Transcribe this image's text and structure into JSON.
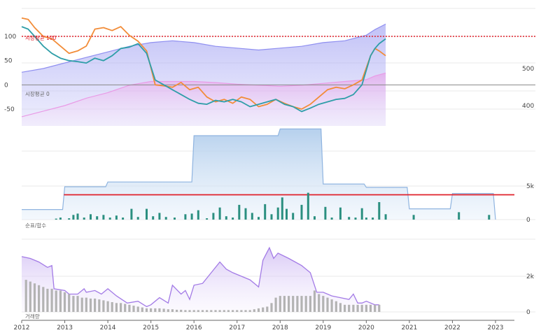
{
  "chart_data": [
    {
      "type": "line",
      "panel": "top",
      "left_axis_ticks": [
        "100",
        "50",
        "0",
        "-50"
      ],
      "left_axis_values": [
        100,
        50,
        0,
        -50
      ],
      "right_axis_ticks": [
        "500",
        "400"
      ],
      "right_axis_values": [
        500,
        400
      ],
      "reference_lines": [
        {
          "label": "시장평균 100",
          "value": 100,
          "color": "#e0202a"
        },
        {
          "label": "시장평균 0",
          "value": 0,
          "color": "#888888"
        }
      ],
      "series": [
        {
          "color": "#f28c38",
          "x": [
            2012.0,
            2012.15,
            2012.3,
            2012.5,
            2012.7,
            2012.9,
            2013.1,
            2013.3,
            2013.5,
            2013.7,
            2013.9,
            2014.1,
            2014.3,
            2014.5,
            2014.7,
            2014.9,
            2015.1,
            2015.3,
            2015.5,
            2015.7,
            2015.9,
            2016.1,
            2016.3,
            2016.5,
            2016.7,
            2016.9,
            2017.1,
            2017.3,
            2017.5,
            2017.7,
            2017.9,
            2018.1,
            2018.3,
            2018.5,
            2018.7,
            2018.9,
            2019.1,
            2019.3,
            2019.5,
            2019.7,
            2019.9,
            2020.1,
            2020.2,
            2020.3,
            2020.45
          ],
          "y": [
            138,
            135,
            118,
            100,
            95,
            80,
            65,
            70,
            80,
            115,
            118,
            112,
            120,
            102,
            90,
            70,
            0,
            -2,
            -5,
            5,
            -10,
            -5,
            -25,
            -35,
            -30,
            -38,
            -25,
            -30,
            -45,
            -40,
            -30,
            -38,
            -45,
            -50,
            -40,
            -25,
            -10,
            -5,
            -8,
            0,
            10,
            60,
            75,
            70,
            60
          ]
        },
        {
          "color": "#2e9ea8",
          "x": [
            2012.0,
            2012.15,
            2012.3,
            2012.5,
            2012.7,
            2012.9,
            2013.1,
            2013.3,
            2013.5,
            2013.7,
            2013.9,
            2014.1,
            2014.3,
            2014.5,
            2014.7,
            2014.9,
            2015.1,
            2015.3,
            2015.5,
            2015.7,
            2015.9,
            2016.1,
            2016.3,
            2016.5,
            2016.7,
            2016.9,
            2017.1,
            2017.3,
            2017.5,
            2017.7,
            2017.9,
            2018.1,
            2018.3,
            2018.5,
            2018.7,
            2018.9,
            2019.1,
            2019.3,
            2019.5,
            2019.7,
            2019.9,
            2020.1,
            2020.2,
            2020.3,
            2020.45
          ],
          "y": [
            120,
            115,
            100,
            80,
            65,
            55,
            50,
            48,
            45,
            55,
            50,
            60,
            75,
            78,
            85,
            65,
            10,
            0,
            -10,
            -20,
            -30,
            -38,
            -40,
            -32,
            -35,
            -30,
            -35,
            -45,
            -40,
            -35,
            -30,
            -40,
            -45,
            -55,
            -48,
            -40,
            -35,
            -30,
            -28,
            -20,
            0,
            60,
            75,
            85,
            95
          ]
        }
      ],
      "bands": [
        {
          "color": "#8f8ff0",
          "x": [
            2012.0,
            2012.5,
            2013.0,
            2013.5,
            2014.0,
            2014.5,
            2015.0,
            2015.5,
            2016.0,
            2016.5,
            2017.0,
            2017.5,
            2018.0,
            2018.5,
            2019.0,
            2019.5,
            2020.0,
            2020.2,
            2020.45
          ],
          "y": [
            490,
            500,
            515,
            530,
            545,
            560,
            570,
            575,
            570,
            560,
            555,
            550,
            555,
            560,
            570,
            575,
            590,
            605,
            620
          ]
        },
        {
          "color": "#e99ae6",
          "x": [
            2012.0,
            2012.5,
            2013.0,
            2013.5,
            2014.0,
            2014.5,
            2015.0,
            2015.5,
            2016.0,
            2016.5,
            2017.0,
            2017.5,
            2018.0,
            2018.5,
            2019.0,
            2019.5,
            2020.0,
            2020.2,
            2020.45
          ],
          "y": [
            370,
            385,
            400,
            420,
            435,
            455,
            465,
            465,
            465,
            462,
            458,
            455,
            452,
            455,
            460,
            465,
            470,
            480,
            488
          ]
        }
      ]
    },
    {
      "type": "bar",
      "panel": "middle",
      "axis_label": "순표/합수",
      "right_axis_ticks": [
        "5k",
        "0"
      ],
      "right_axis_values": [
        5000,
        0
      ],
      "step_band": {
        "color": "#a9c8ea",
        "x": [
          2012.0,
          2012.95,
          2013.0,
          2013.95,
          2014.0,
          2015.95,
          2016.0,
          2017.95,
          2018.0,
          2018.95,
          2019.0,
          2019.95,
          2020.0,
          2020.95,
          2021.0,
          2021.95,
          2022.0,
          2022.95,
          2023.0
        ],
        "y": [
          1500,
          1500,
          4900,
          4900,
          5600,
          5600,
          12500,
          12500,
          13500,
          13500,
          5300,
          5300,
          4800,
          4800,
          1600,
          1600,
          3900,
          3900,
          0
        ]
      },
      "reference_line": {
        "value": 3700,
        "color": "#e0202a"
      },
      "bars": [
        {
          "x": 2012.8,
          "y": 150
        },
        {
          "x": 2012.9,
          "y": 300
        },
        {
          "x": 2013.1,
          "y": 200
        },
        {
          "x": 2013.2,
          "y": 700
        },
        {
          "x": 2013.3,
          "y": 900
        },
        {
          "x": 2013.45,
          "y": 300
        },
        {
          "x": 2013.6,
          "y": 800
        },
        {
          "x": 2013.75,
          "y": 500
        },
        {
          "x": 2013.9,
          "y": 700
        },
        {
          "x": 2014.05,
          "y": 300
        },
        {
          "x": 2014.2,
          "y": 600
        },
        {
          "x": 2014.35,
          "y": 300
        },
        {
          "x": 2014.55,
          "y": 1600
        },
        {
          "x": 2014.7,
          "y": 400
        },
        {
          "x": 2014.9,
          "y": 1600
        },
        {
          "x": 2015.05,
          "y": 500
        },
        {
          "x": 2015.2,
          "y": 1000
        },
        {
          "x": 2015.35,
          "y": 400
        },
        {
          "x": 2015.55,
          "y": 300
        },
        {
          "x": 2015.8,
          "y": 800
        },
        {
          "x": 2015.95,
          "y": 900
        },
        {
          "x": 2016.1,
          "y": 1400
        },
        {
          "x": 2016.3,
          "y": 200
        },
        {
          "x": 2016.45,
          "y": 1000
        },
        {
          "x": 2016.6,
          "y": 1800
        },
        {
          "x": 2016.75,
          "y": 500
        },
        {
          "x": 2016.9,
          "y": 300
        },
        {
          "x": 2017.05,
          "y": 2200
        },
        {
          "x": 2017.2,
          "y": 1700
        },
        {
          "x": 2017.35,
          "y": 1000
        },
        {
          "x": 2017.5,
          "y": 400
        },
        {
          "x": 2017.65,
          "y": 2300
        },
        {
          "x": 2017.8,
          "y": 800
        },
        {
          "x": 2017.95,
          "y": 1800
        },
        {
          "x": 2018.05,
          "y": 3300
        },
        {
          "x": 2018.15,
          "y": 1600
        },
        {
          "x": 2018.3,
          "y": 1000
        },
        {
          "x": 2018.5,
          "y": 2200
        },
        {
          "x": 2018.65,
          "y": 4000
        },
        {
          "x": 2018.8,
          "y": 500
        },
        {
          "x": 2019.05,
          "y": 1900
        },
        {
          "x": 2019.2,
          "y": 300
        },
        {
          "x": 2019.4,
          "y": 1800
        },
        {
          "x": 2019.6,
          "y": 400
        },
        {
          "x": 2019.75,
          "y": 300
        },
        {
          "x": 2019.9,
          "y": 1700
        },
        {
          "x": 2020.0,
          "y": 300
        },
        {
          "x": 2020.15,
          "y": 300
        },
        {
          "x": 2020.3,
          "y": 2600
        },
        {
          "x": 2020.45,
          "y": 800
        },
        {
          "x": 2021.1,
          "y": 700
        },
        {
          "x": 2022.15,
          "y": 1100
        },
        {
          "x": 2022.85,
          "y": 700
        }
      ]
    },
    {
      "type": "bar",
      "panel": "bottom",
      "axis_label": "거래량",
      "right_axis_ticks": [
        "2k",
        "0"
      ],
      "right_axis_values": [
        2000,
        0
      ],
      "x_ticks": [
        "2012",
        "2013",
        "2014",
        "2015",
        "2016",
        "2017",
        "2018",
        "2019",
        "2020",
        "2021",
        "2022",
        "2023"
      ],
      "x_tick_values": [
        2012,
        2013,
        2014,
        2015,
        2016,
        2017,
        2018,
        2019,
        2020,
        2021,
        2022,
        2023
      ],
      "area": {
        "color": "#a37be6",
        "x": [
          2012.0,
          2012.2,
          2012.4,
          2012.6,
          2012.7,
          2012.75,
          2013.0,
          2013.1,
          2013.3,
          2013.45,
          2013.5,
          2013.7,
          2013.85,
          2014.0,
          2014.2,
          2014.45,
          2014.7,
          2014.9,
          2015.0,
          2015.2,
          2015.4,
          2015.5,
          2015.7,
          2015.8,
          2015.9,
          2016.0,
          2016.2,
          2016.4,
          2016.6,
          2016.75,
          2016.9,
          2017.1,
          2017.3,
          2017.5,
          2017.6,
          2017.75,
          2017.85,
          2017.95,
          2018.2,
          2018.5,
          2018.7,
          2018.85,
          2019.0,
          2019.2,
          2019.4,
          2019.6,
          2019.7,
          2019.8,
          2019.9,
          2020.0,
          2020.2,
          2020.3
        ],
        "y": [
          3100,
          3000,
          2800,
          2500,
          2600,
          1300,
          1200,
          1000,
          1000,
          1300,
          1100,
          1200,
          1000,
          1300,
          900,
          500,
          600,
          300,
          400,
          800,
          500,
          1500,
          1000,
          1200,
          700,
          1500,
          1600,
          2200,
          2800,
          2400,
          2200,
          2000,
          1800,
          1400,
          2900,
          3600,
          3000,
          3300,
          3000,
          2600,
          2200,
          1100,
          1100,
          900,
          800,
          700,
          1000,
          500,
          500,
          600,
          400,
          400
        ]
      },
      "bars": [
        {
          "x": 2012.1,
          "y": 1800
        },
        {
          "x": 2012.2,
          "y": 1700
        },
        {
          "x": 2012.3,
          "y": 1600
        },
        {
          "x": 2012.4,
          "y": 1500
        },
        {
          "x": 2012.5,
          "y": 1400
        },
        {
          "x": 2012.6,
          "y": 1300
        },
        {
          "x": 2012.7,
          "y": 1300
        },
        {
          "x": 2012.8,
          "y": 1200
        },
        {
          "x": 2012.9,
          "y": 1200
        },
        {
          "x": 2013.0,
          "y": 1100
        },
        {
          "x": 2013.1,
          "y": 1000
        },
        {
          "x": 2013.2,
          "y": 900
        },
        {
          "x": 2013.3,
          "y": 900
        },
        {
          "x": 2013.4,
          "y": 800
        },
        {
          "x": 2013.5,
          "y": 800
        },
        {
          "x": 2013.6,
          "y": 750
        },
        {
          "x": 2013.7,
          "y": 750
        },
        {
          "x": 2013.8,
          "y": 700
        },
        {
          "x": 2013.9,
          "y": 650
        },
        {
          "x": 2014.0,
          "y": 600
        },
        {
          "x": 2014.1,
          "y": 550
        },
        {
          "x": 2014.2,
          "y": 500
        },
        {
          "x": 2014.3,
          "y": 500
        },
        {
          "x": 2014.4,
          "y": 450
        },
        {
          "x": 2014.5,
          "y": 400
        },
        {
          "x": 2014.6,
          "y": 350
        },
        {
          "x": 2014.7,
          "y": 300
        },
        {
          "x": 2014.8,
          "y": 250
        },
        {
          "x": 2014.9,
          "y": 200
        },
        {
          "x": 2015.0,
          "y": 200
        },
        {
          "x": 2015.1,
          "y": 200
        },
        {
          "x": 2015.2,
          "y": 200
        },
        {
          "x": 2015.3,
          "y": 180
        },
        {
          "x": 2015.4,
          "y": 150
        },
        {
          "x": 2015.5,
          "y": 150
        },
        {
          "x": 2015.6,
          "y": 120
        },
        {
          "x": 2015.7,
          "y": 120
        },
        {
          "x": 2015.8,
          "y": 100
        },
        {
          "x": 2015.9,
          "y": 100
        },
        {
          "x": 2016.0,
          "y": 100
        },
        {
          "x": 2016.1,
          "y": 100
        },
        {
          "x": 2016.2,
          "y": 100
        },
        {
          "x": 2016.3,
          "y": 100
        },
        {
          "x": 2016.4,
          "y": 100
        },
        {
          "x": 2016.5,
          "y": 100
        },
        {
          "x": 2016.6,
          "y": 100
        },
        {
          "x": 2016.7,
          "y": 100
        },
        {
          "x": 2016.8,
          "y": 100
        },
        {
          "x": 2016.9,
          "y": 100
        },
        {
          "x": 2017.0,
          "y": 100
        },
        {
          "x": 2017.1,
          "y": 100
        },
        {
          "x": 2017.2,
          "y": 100
        },
        {
          "x": 2017.3,
          "y": 100
        },
        {
          "x": 2017.4,
          "y": 150
        },
        {
          "x": 2017.5,
          "y": 200
        },
        {
          "x": 2017.6,
          "y": 250
        },
        {
          "x": 2017.7,
          "y": 300
        },
        {
          "x": 2017.8,
          "y": 500
        },
        {
          "x": 2017.9,
          "y": 800
        },
        {
          "x": 2018.0,
          "y": 900
        },
        {
          "x": 2018.1,
          "y": 900
        },
        {
          "x": 2018.2,
          "y": 900
        },
        {
          "x": 2018.3,
          "y": 900
        },
        {
          "x": 2018.4,
          "y": 900
        },
        {
          "x": 2018.5,
          "y": 900
        },
        {
          "x": 2018.6,
          "y": 900
        },
        {
          "x": 2018.7,
          "y": 900
        },
        {
          "x": 2018.8,
          "y": 1200
        },
        {
          "x": 2018.9,
          "y": 1000
        },
        {
          "x": 2019.0,
          "y": 900
        },
        {
          "x": 2019.1,
          "y": 800
        },
        {
          "x": 2019.2,
          "y": 700
        },
        {
          "x": 2019.3,
          "y": 600
        },
        {
          "x": 2019.4,
          "y": 500
        },
        {
          "x": 2019.5,
          "y": 400
        },
        {
          "x": 2019.6,
          "y": 400
        },
        {
          "x": 2019.7,
          "y": 400
        },
        {
          "x": 2019.8,
          "y": 400
        },
        {
          "x": 2019.9,
          "y": 400
        },
        {
          "x": 2020.0,
          "y": 400
        },
        {
          "x": 2020.1,
          "y": 400
        },
        {
          "x": 2020.2,
          "y": 400
        },
        {
          "x": 2020.3,
          "y": 400
        }
      ]
    }
  ]
}
